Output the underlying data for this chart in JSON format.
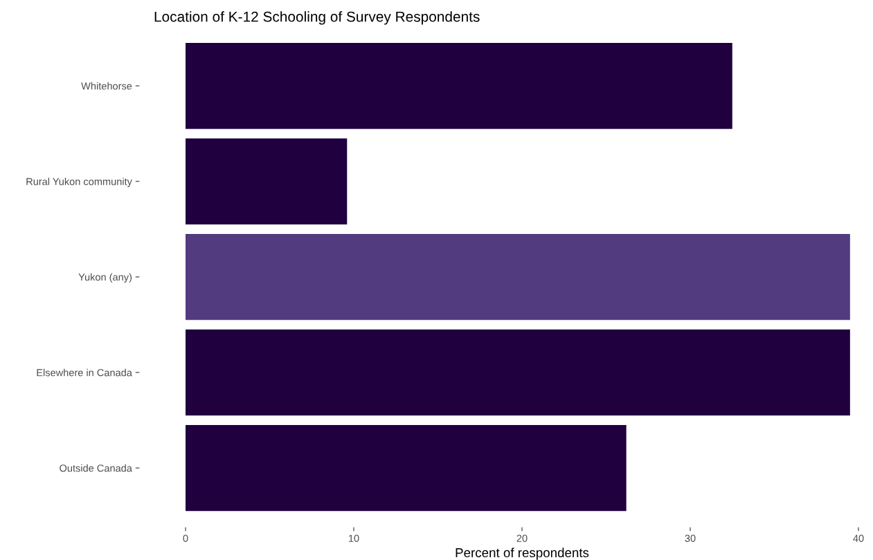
{
  "chart_data": {
    "type": "bar",
    "orientation": "horizontal",
    "title": "Location of K-12 Schooling of Survey Respondents",
    "xlabel": "Percent of respondents",
    "categories": [
      "Whitehorse",
      "Rural Yukon community",
      "Yukon (any)",
      "Elsewhere in Canada",
      "Outside Canada"
    ],
    "values": [
      32.5,
      9.6,
      39.5,
      39.5,
      26.2
    ],
    "colors": [
      "#20003f",
      "#20003f",
      "#523b7e",
      "#20003f",
      "#20003f"
    ],
    "xlim": [
      0,
      40
    ],
    "xticks": [
      0,
      10,
      20,
      30,
      40
    ],
    "grid": false,
    "legend": false
  }
}
